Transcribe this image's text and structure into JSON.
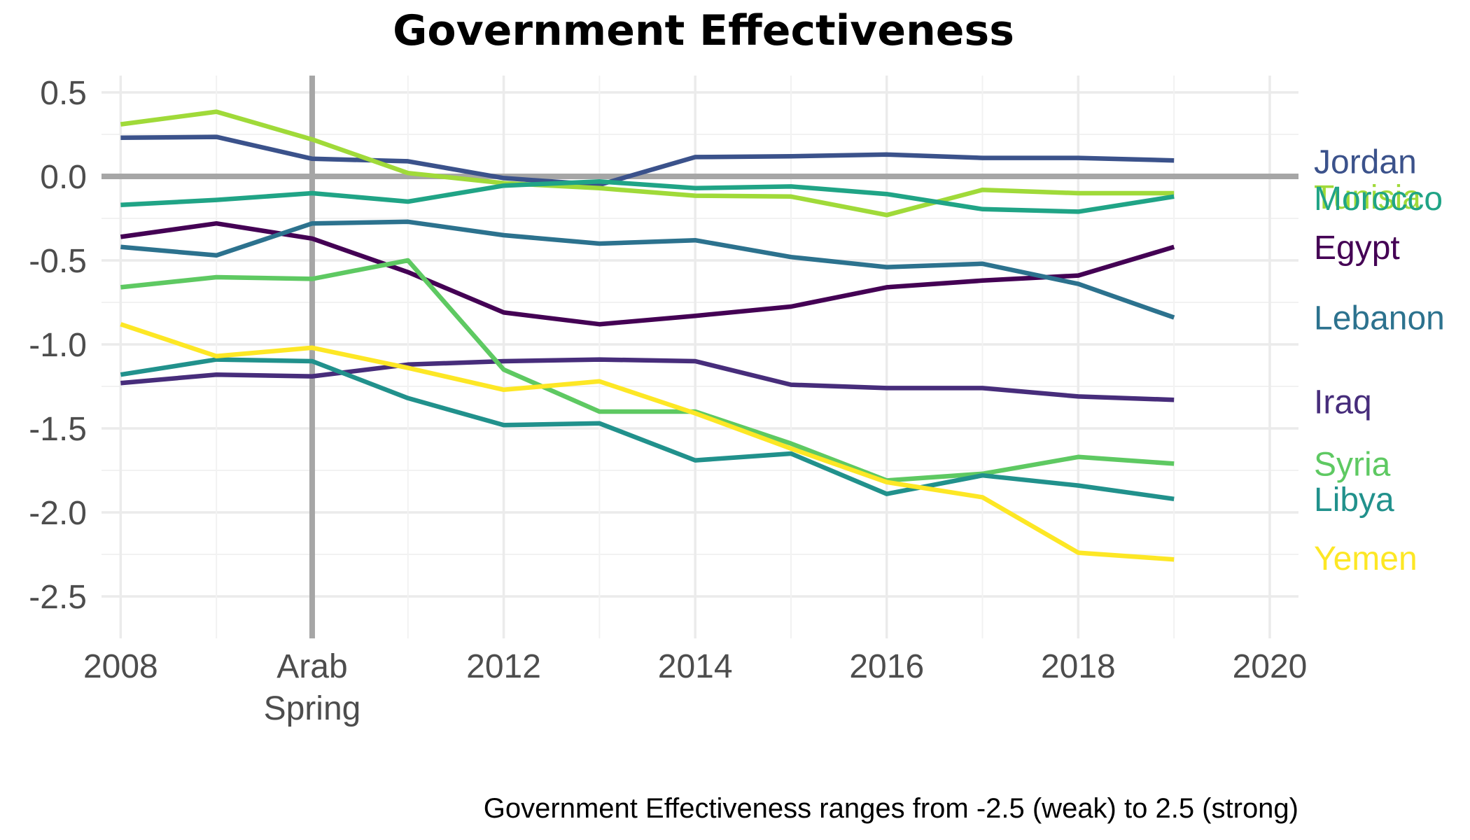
{
  "chart_data": {
    "type": "line",
    "title": "Government Effectiveness",
    "caption": "Government Effectiveness ranges from -2.5 (weak) to 2.5 (strong)",
    "xlabel": "",
    "ylabel": "",
    "xlim": [
      2007.8,
      2020.3
    ],
    "ylim": [
      -2.75,
      0.6
    ],
    "x_ticks": [
      {
        "value": 2008,
        "label": "2008"
      },
      {
        "value": 2010,
        "label": "Arab\nSpring"
      },
      {
        "value": 2012,
        "label": "2012"
      },
      {
        "value": 2014,
        "label": "2014"
      },
      {
        "value": 2016,
        "label": "2016"
      },
      {
        "value": 2018,
        "label": "2018"
      },
      {
        "value": 2020,
        "label": "2020"
      }
    ],
    "y_ticks": [
      {
        "value": 0.5,
        "label": "0.5"
      },
      {
        "value": 0.0,
        "label": "0.0"
      },
      {
        "value": -0.5,
        "label": "-0.5"
      },
      {
        "value": -1.0,
        "label": "-1.0"
      },
      {
        "value": -1.5,
        "label": "-1.5"
      },
      {
        "value": -2.0,
        "label": "-2.0"
      },
      {
        "value": -2.5,
        "label": "-2.5"
      }
    ],
    "reference_lines": {
      "vertical_x": 2010,
      "horizontal_y": 0,
      "color": "#a6a6a6"
    },
    "grid": true,
    "legend": "direct labels at right end of lines",
    "x": [
      2008,
      2009,
      2010,
      2011,
      2012,
      2013,
      2014,
      2015,
      2016,
      2017,
      2018,
      2019
    ],
    "series": [
      {
        "name": "Jordan",
        "color": "#3b528b",
        "values": [
          0.23,
          0.235,
          0.105,
          0.09,
          -0.01,
          -0.05,
          0.115,
          0.12,
          0.13,
          0.11,
          0.11,
          0.095
        ]
      },
      {
        "name": "Tunisia",
        "color": "#a0da39",
        "values": [
          0.31,
          0.385,
          0.22,
          0.02,
          -0.04,
          -0.07,
          -0.115,
          -0.12,
          -0.23,
          -0.08,
          -0.1,
          -0.1
        ]
      },
      {
        "name": "Morocco",
        "color": "#20a486",
        "values": [
          -0.17,
          -0.14,
          -0.1,
          -0.15,
          -0.055,
          -0.03,
          -0.07,
          -0.06,
          -0.105,
          -0.195,
          -0.21,
          -0.12
        ]
      },
      {
        "name": "Egypt",
        "color": "#440154",
        "values": [
          -0.36,
          -0.28,
          -0.37,
          -0.57,
          -0.81,
          -0.88,
          -0.83,
          -0.775,
          -0.66,
          -0.62,
          -0.59,
          -0.42
        ]
      },
      {
        "name": "Lebanon",
        "color": "#2c728e",
        "values": [
          -0.42,
          -0.47,
          -0.28,
          -0.27,
          -0.35,
          -0.4,
          -0.38,
          -0.48,
          -0.54,
          -0.52,
          -0.64,
          -0.84
        ]
      },
      {
        "name": "Iraq",
        "color": "#472d7b",
        "values": [
          -1.23,
          -1.18,
          -1.19,
          -1.12,
          -1.1,
          -1.09,
          -1.1,
          -1.24,
          -1.26,
          -1.26,
          -1.31,
          -1.33
        ]
      },
      {
        "name": "Syria",
        "color": "#5ec962",
        "values": [
          -0.66,
          -0.6,
          -0.61,
          -0.5,
          -1.15,
          -1.4,
          -1.4,
          -1.59,
          -1.81,
          -1.77,
          -1.67,
          -1.71
        ]
      },
      {
        "name": "Libya",
        "color": "#21918c",
        "values": [
          -1.18,
          -1.09,
          -1.1,
          -1.32,
          -1.48,
          -1.47,
          -1.69,
          -1.65,
          -1.89,
          -1.78,
          -1.84,
          -1.92
        ]
      },
      {
        "name": "Yemen",
        "color": "#fde725",
        "values": [
          -0.88,
          -1.07,
          -1.02,
          -1.14,
          -1.27,
          -1.22,
          -1.41,
          -1.62,
          -1.82,
          -1.91,
          -2.24,
          -2.28
        ]
      }
    ],
    "end_labels": [
      {
        "series": "Jordan",
        "text": "Jordan",
        "y": 0.09
      },
      {
        "series": "Tunisia",
        "text": "Tunisia",
        "y": -0.12
      },
      {
        "series": "Morocco",
        "text": "Morocco",
        "y": -0.13
      },
      {
        "series": "Egypt",
        "text": "Egypt",
        "y": -0.42
      },
      {
        "series": "Lebanon",
        "text": "Lebanon",
        "y": -0.84
      },
      {
        "series": "Iraq",
        "text": "Iraq",
        "y": -1.34
      },
      {
        "series": "Syria",
        "text": "Syria",
        "y": -1.71
      },
      {
        "series": "Libya",
        "text": "Libya",
        "y": -1.92
      },
      {
        "series": "Yemen",
        "text": "Yemen",
        "y": -2.27
      }
    ]
  }
}
